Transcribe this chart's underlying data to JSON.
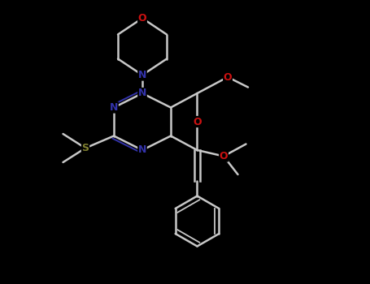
{
  "background_color": "#000000",
  "atom_colors": {
    "C": "#c8c8c8",
    "N": "#3333aa",
    "O": "#cc1111",
    "S": "#808030"
  },
  "bond_color": "#c8c8c8",
  "bond_width": 1.8,
  "font_size": 9,
  "fig_width": 4.55,
  "fig_height": 3.5,
  "dpi": 100,
  "xlim": [
    0,
    9.1
  ],
  "ylim": [
    0,
    7.0
  ]
}
